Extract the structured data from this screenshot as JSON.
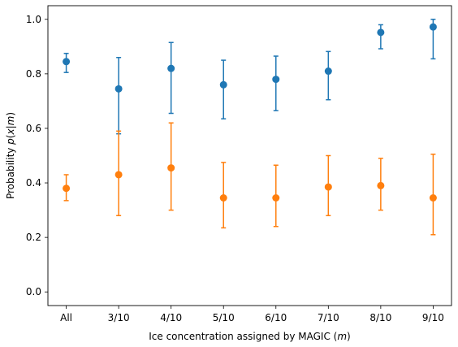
{
  "chart_data": {
    "type": "scatter",
    "title": "",
    "xlabel": "Ice concentration assigned by MAGIC (m)",
    "ylabel": "Probability p(x|m)",
    "categories": [
      "All",
      "3/10",
      "4/10",
      "5/10",
      "6/10",
      "7/10",
      "8/10",
      "9/10"
    ],
    "ylim": [
      -0.05,
      1.05
    ],
    "yticks": [
      "0.0",
      "0.2",
      "0.4",
      "0.6",
      "0.8",
      "1.0"
    ],
    "grid": false,
    "legend": "none",
    "series": [
      {
        "color": "#1f77b4",
        "values": [
          0.845,
          0.745,
          0.82,
          0.76,
          0.78,
          0.81,
          0.952,
          0.972
        ],
        "lower": [
          0.805,
          0.58,
          0.655,
          0.635,
          0.665,
          0.705,
          0.892,
          0.855
        ],
        "upper": [
          0.875,
          0.86,
          0.915,
          0.85,
          0.865,
          0.882,
          0.98,
          1.0
        ]
      },
      {
        "color": "#ff7f0e",
        "values": [
          0.38,
          0.43,
          0.455,
          0.345,
          0.345,
          0.385,
          0.39,
          0.345
        ],
        "lower": [
          0.335,
          0.28,
          0.3,
          0.235,
          0.24,
          0.28,
          0.3,
          0.21
        ],
        "upper": [
          0.43,
          0.59,
          0.62,
          0.475,
          0.465,
          0.5,
          0.49,
          0.505
        ]
      }
    ]
  }
}
